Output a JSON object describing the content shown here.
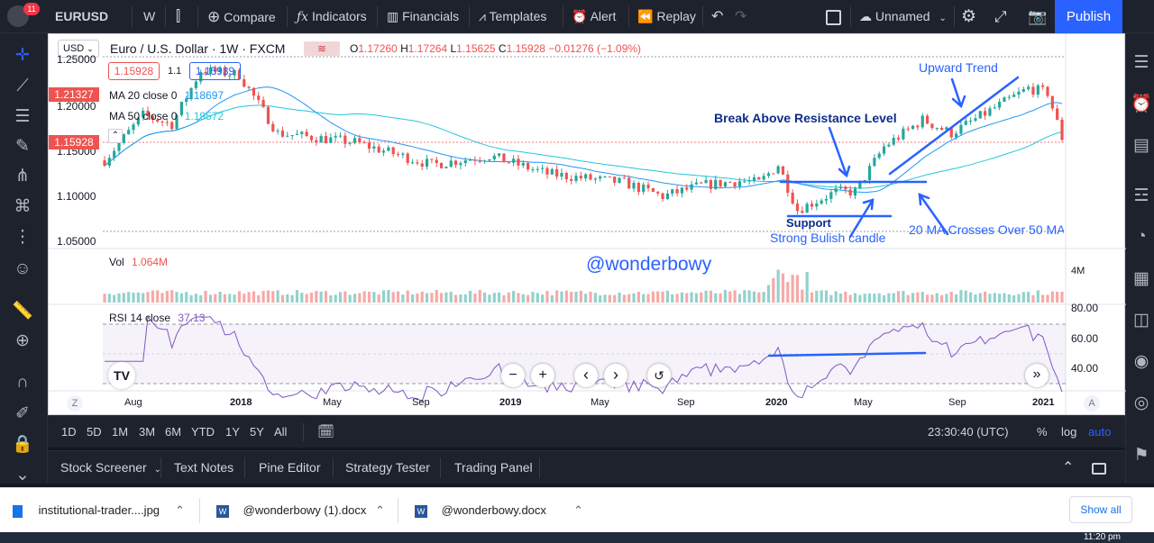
{
  "topbar": {
    "badge": "11",
    "symbol": "EURUSD",
    "interval": "W",
    "compare": "Compare",
    "indicators": "Indicators",
    "financials": "Financials",
    "templates": "Templates",
    "alert": "Alert",
    "replay": "Replay",
    "layout_name": "Unnamed",
    "publish": "Publish"
  },
  "chart": {
    "currency": "USD",
    "title": "Euro / U.S. Dollar · 1W · FXCM",
    "ohlc": {
      "o": "O",
      "o_val": "1.17260",
      "h": "H",
      "h_val": "1.17264",
      "l": "L",
      "l_val": "1.15625",
      "c": "C",
      "c_val": "1.15928",
      "change": "−0.01276 (−1.09%)"
    },
    "bid": "1.15928",
    "spread": "1.1",
    "ask": "1.15939",
    "ma20": {
      "label": "MA 20 close 0",
      "value": "1.18697"
    },
    "ma50": {
      "label": "MA 50 close 0",
      "value": "1.19572"
    },
    "price_axis": [
      "1.25000",
      "1.20000",
      "1.15000",
      "1.10000",
      "1.05000"
    ],
    "price_tags": {
      "high": "1.21327",
      "last": "1.15928"
    },
    "vol_label": "Vol",
    "vol_value": "1.064M",
    "vol_axis": "4M",
    "rsi_label": "RSI 14 close",
    "rsi_value": "37.13",
    "rsi_axis": [
      "80.00",
      "60.00",
      "40.00"
    ],
    "time_axis": [
      "Aug",
      "2018",
      "May",
      "Sep",
      "2019",
      "May",
      "Sep",
      "2020",
      "May",
      "Sep",
      "2021"
    ],
    "axis_z": "Z",
    "axis_a": "A",
    "watermark": "@wonderbowy",
    "annotations": {
      "upward": "Upward Trend",
      "resistance": "Break Above Resistance Level",
      "support": "Support",
      "bullish": "Strong Bulish candle",
      "crossover": "20 MA Crosses Over 50 MA"
    },
    "nav_zoom_out": "−",
    "nav_zoom_in": "+",
    "nav_prev": "‹",
    "nav_next": "›",
    "nav_reset": "↺",
    "nav_end": "»"
  },
  "bottombar": {
    "ranges": [
      "1D",
      "5D",
      "1M",
      "3M",
      "6M",
      "YTD",
      "1Y",
      "5Y",
      "All"
    ],
    "time": "23:30:40 (UTC)",
    "percent": "%",
    "log": "log",
    "auto": "auto"
  },
  "panel": {
    "tabs": [
      "Stock Screener",
      "Text Notes",
      "Pine Editor",
      "Strategy Tester",
      "Trading Panel"
    ]
  },
  "downloads": {
    "items": [
      "institutional-trader....jpg",
      "@wonderbowy (1).docx",
      "@wonderbowy.docx"
    ],
    "show_all": "Show all"
  },
  "taskbar": {
    "time": "11:20 pm"
  },
  "colors": {
    "up": "#26a69a",
    "down": "#ef5350",
    "ma20": "#2196f3",
    "ma50": "#26c6da",
    "annotation": "#2962ff",
    "rsi": "#7e57c2",
    "publish": "#2962ff"
  }
}
